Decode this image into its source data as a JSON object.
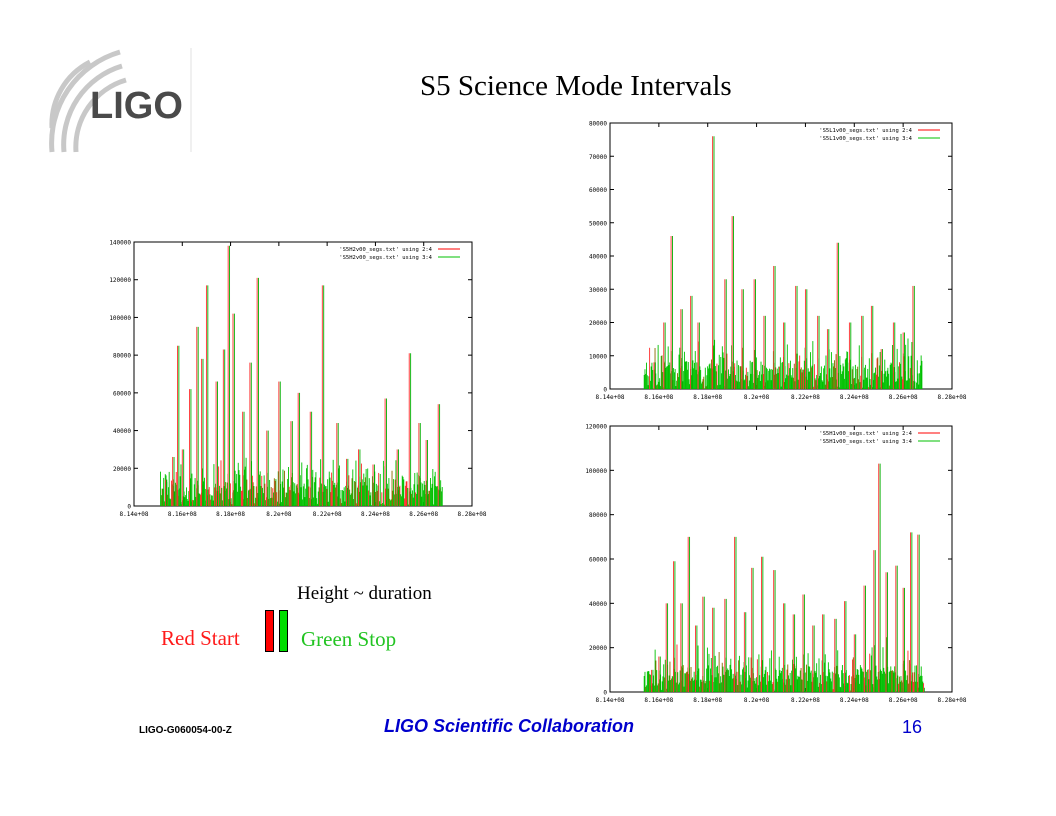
{
  "slide": {
    "title": "S5 Science Mode Intervals",
    "legend_caption": "Height ~ duration",
    "red_label": "Red Start",
    "green_label": "Green Stop",
    "footer_id": "LIGO-G060054-00-Z",
    "footer_center": "LIGO Scientific Collaboration",
    "page_number": "16",
    "logo_text": "LIGO",
    "colors": {
      "red": "#ff0000",
      "green": "#00c000",
      "footer": "#0000cc"
    }
  },
  "chart_data": [
    {
      "type": "bar",
      "xlim": [
        814000000,
        828000000
      ],
      "ylim": [
        0,
        140000
      ],
      "xticks": [
        "8.14e+08",
        "8.16e+08",
        "8.18e+08",
        "8.2e+08",
        "8.22e+08",
        "8.24e+08",
        "8.26e+08",
        "8.28e+08"
      ],
      "yticks": [
        "0",
        "20000",
        "40000",
        "60000",
        "80000",
        "100000",
        "120000",
        "140000"
      ],
      "series": [
        {
          "name": "'S5H2v00_segs.txt' using 2:4",
          "color": "#ff0000"
        },
        {
          "name": "'S5H2v00_segs.txt' using 3:4",
          "color": "#00c000"
        }
      ],
      "x_range": [
        815100000,
        826800000
      ],
      "peaks": [
        [
          815300000,
          14000
        ],
        [
          815600000,
          26000
        ],
        [
          815800000,
          85000
        ],
        [
          816000000,
          30000
        ],
        [
          816300000,
          62000
        ],
        [
          816600000,
          95000
        ],
        [
          816800000,
          78000
        ],
        [
          817000000,
          117000
        ],
        [
          817400000,
          66000
        ],
        [
          817700000,
          83000
        ],
        [
          817900000,
          138000
        ],
        [
          818100000,
          102000
        ],
        [
          818500000,
          50000
        ],
        [
          818800000,
          76000
        ],
        [
          819100000,
          121000
        ],
        [
          819500000,
          40000
        ],
        [
          820000000,
          66000
        ],
        [
          820500000,
          45000
        ],
        [
          820800000,
          60000
        ],
        [
          821300000,
          50000
        ],
        [
          821800000,
          117000
        ],
        [
          822400000,
          44000
        ],
        [
          822800000,
          25000
        ],
        [
          823300000,
          30000
        ],
        [
          823900000,
          22000
        ],
        [
          824400000,
          57000
        ],
        [
          824900000,
          30000
        ],
        [
          825400000,
          81000
        ],
        [
          825800000,
          44000
        ],
        [
          826100000,
          35000
        ],
        [
          826600000,
          54000
        ]
      ]
    },
    {
      "type": "bar",
      "xlim": [
        814000000,
        828000000
      ],
      "ylim": [
        0,
        80000
      ],
      "xticks": [
        "8.14e+08",
        "8.16e+08",
        "8.18e+08",
        "8.2e+08",
        "8.22e+08",
        "8.24e+08",
        "8.26e+08",
        "8.28e+08"
      ],
      "yticks": [
        "0",
        "10000",
        "20000",
        "30000",
        "40000",
        "50000",
        "60000",
        "70000",
        "80000"
      ],
      "series": [
        {
          "name": "'S5L1v00_segs.txt' using 2:4",
          "color": "#ff0000"
        },
        {
          "name": "'S5L1v00_segs.txt' using 3:4",
          "color": "#00c000"
        }
      ],
      "x_range": [
        815400000,
        826800000
      ],
      "peaks": [
        [
          815800000,
          8000
        ],
        [
          816200000,
          20000
        ],
        [
          816500000,
          46000
        ],
        [
          816900000,
          24000
        ],
        [
          817300000,
          28000
        ],
        [
          817600000,
          20000
        ],
        [
          818200000,
          76000
        ],
        [
          818700000,
          33000
        ],
        [
          819000000,
          52000
        ],
        [
          819400000,
          30000
        ],
        [
          819900000,
          33000
        ],
        [
          820300000,
          22000
        ],
        [
          820700000,
          37000
        ],
        [
          821100000,
          20000
        ],
        [
          821600000,
          31000
        ],
        [
          822000000,
          30000
        ],
        [
          822500000,
          22000
        ],
        [
          822900000,
          18000
        ],
        [
          823300000,
          44000
        ],
        [
          823800000,
          20000
        ],
        [
          824300000,
          22000
        ],
        [
          824700000,
          25000
        ],
        [
          825100000,
          12000
        ],
        [
          825600000,
          20000
        ],
        [
          826000000,
          17000
        ],
        [
          826400000,
          31000
        ]
      ]
    },
    {
      "type": "bar",
      "xlim": [
        814000000,
        828000000
      ],
      "ylim": [
        0,
        120000
      ],
      "xticks": [
        "8.14e+08",
        "8.16e+08",
        "8.18e+08",
        "8.2e+08",
        "8.22e+08",
        "8.24e+08",
        "8.26e+08",
        "8.28e+08"
      ],
      "yticks": [
        "0",
        "20000",
        "40000",
        "60000",
        "80000",
        "100000",
        "120000"
      ],
      "series": [
        {
          "name": "'S5H1v00_segs.txt' using 2:4",
          "color": "#ff0000"
        },
        {
          "name": "'S5H1v00_segs.txt' using 3:4",
          "color": "#00c000"
        }
      ],
      "x_range": [
        815400000,
        826900000
      ],
      "peaks": [
        [
          815700000,
          10000
        ],
        [
          816000000,
          16000
        ],
        [
          816300000,
          40000
        ],
        [
          816600000,
          59000
        ],
        [
          816900000,
          40000
        ],
        [
          817200000,
          70000
        ],
        [
          817500000,
          30000
        ],
        [
          817800000,
          43000
        ],
        [
          818200000,
          38000
        ],
        [
          818700000,
          42000
        ],
        [
          819100000,
          70000
        ],
        [
          819500000,
          36000
        ],
        [
          819800000,
          56000
        ],
        [
          820200000,
          61000
        ],
        [
          820700000,
          55000
        ],
        [
          821100000,
          40000
        ],
        [
          821500000,
          35000
        ],
        [
          821900000,
          44000
        ],
        [
          822300000,
          30000
        ],
        [
          822700000,
          35000
        ],
        [
          823200000,
          33000
        ],
        [
          823600000,
          41000
        ],
        [
          824000000,
          26000
        ],
        [
          824400000,
          48000
        ],
        [
          824800000,
          64000
        ],
        [
          825000000,
          103000
        ],
        [
          825300000,
          54000
        ],
        [
          825700000,
          57000
        ],
        [
          826000000,
          47000
        ],
        [
          826300000,
          72000
        ],
        [
          826600000,
          71000
        ]
      ]
    }
  ]
}
